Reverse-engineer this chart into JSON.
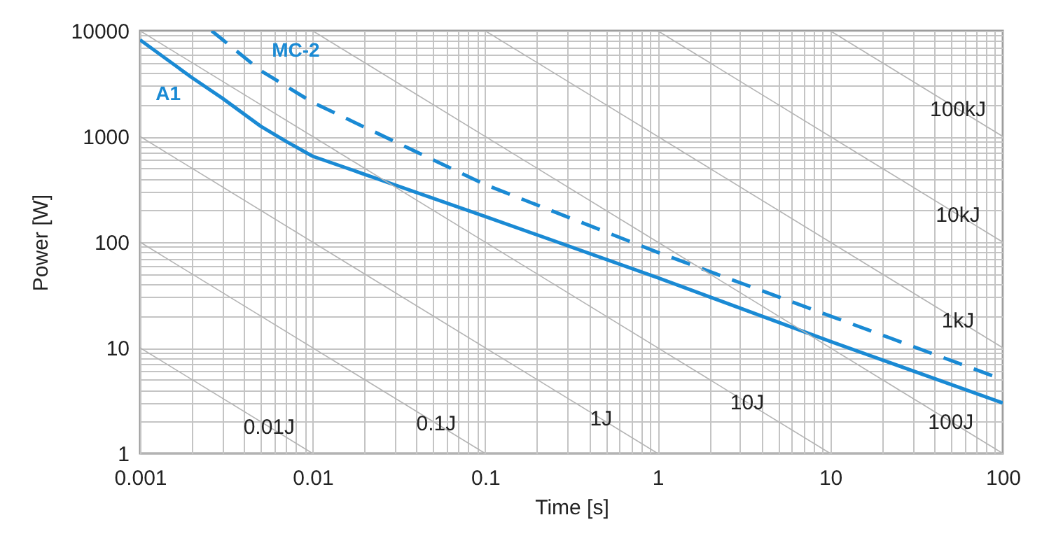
{
  "chart_data": {
    "type": "line",
    "xlabel": "Time [s]",
    "ylabel": "Power [W]",
    "log": "xy",
    "grid": true,
    "xlim": [
      0.001,
      100
    ],
    "ylim": [
      1,
      10000
    ],
    "xticks": [
      0.001,
      {
        "value": 0.002,
        "label": null
      },
      {
        "value": 0.003,
        "label": null
      },
      {
        "value": 0.004,
        "label": null
      },
      {
        "value": 0.005,
        "label": null
      },
      {
        "value": 0.006,
        "label": null
      },
      {
        "value": 0.007,
        "label": null
      },
      {
        "value": 0.008,
        "label": null
      },
      {
        "value": 0.009,
        "label": null
      },
      0.01,
      {
        "value": 0.02,
        "label": null
      },
      {
        "value": 0.03,
        "label": null
      },
      {
        "value": 0.04,
        "label": null
      },
      {
        "value": 0.05,
        "label": null
      },
      {
        "value": 0.06,
        "label": null
      },
      {
        "value": 0.07,
        "label": null
      },
      {
        "value": 0.08,
        "label": null
      },
      {
        "value": 0.09,
        "label": null
      },
      0.1,
      {
        "value": 0.2,
        "label": null
      },
      {
        "value": 0.3,
        "label": null
      },
      {
        "value": 0.4,
        "label": null
      },
      {
        "value": 0.5,
        "label": null
      },
      {
        "value": 0.6,
        "label": null
      },
      {
        "value": 0.7,
        "label": null
      },
      {
        "value": 0.8,
        "label": null
      },
      {
        "value": 0.9,
        "label": null
      },
      1,
      {
        "value": 2,
        "label": null
      },
      {
        "value": 3,
        "label": null
      },
      {
        "value": 4,
        "label": null
      },
      {
        "value": 5,
        "label": null
      },
      {
        "value": 6,
        "label": null
      },
      {
        "value": 7,
        "label": null
      },
      {
        "value": 8,
        "label": null
      },
      {
        "value": 9,
        "label": null
      },
      10,
      {
        "value": 20,
        "label": null
      },
      {
        "value": 30,
        "label": null
      },
      {
        "value": 40,
        "label": null
      },
      {
        "value": 50,
        "label": null
      },
      {
        "value": 60,
        "label": null
      },
      {
        "value": 70,
        "label": null
      },
      {
        "value": 80,
        "label": null
      },
      {
        "value": 90,
        "label": null
      },
      100
    ],
    "yticks": [
      1,
      {
        "value": 2,
        "label": null
      },
      {
        "value": 3,
        "label": null
      },
      {
        "value": 4,
        "label": null
      },
      {
        "value": 5,
        "label": null
      },
      {
        "value": 6,
        "label": null
      },
      {
        "value": 7,
        "label": null
      },
      {
        "value": 8,
        "label": null
      },
      {
        "value": 9,
        "label": null
      },
      10,
      {
        "value": 20,
        "label": null
      },
      {
        "value": 30,
        "label": null
      },
      {
        "value": 40,
        "label": null
      },
      {
        "value": 50,
        "label": null
      },
      {
        "value": 60,
        "label": null
      },
      {
        "value": 70,
        "label": null
      },
      {
        "value": 80,
        "label": null
      },
      {
        "value": 90,
        "label": null
      },
      100,
      {
        "value": 200,
        "label": null
      },
      {
        "value": 300,
        "label": null
      },
      {
        "value": 400,
        "label": null
      },
      {
        "value": 500,
        "label": null
      },
      {
        "value": 600,
        "label": null
      },
      {
        "value": 700,
        "label": null
      },
      {
        "value": 800,
        "label": null
      },
      {
        "value": 900,
        "label": null
      },
      1000,
      {
        "value": 2000,
        "label": null
      },
      {
        "value": 3000,
        "label": null
      },
      {
        "value": 4000,
        "label": null
      },
      {
        "value": 5000,
        "label": null
      },
      {
        "value": 6000,
        "label": null
      },
      {
        "value": 7000,
        "label": null
      },
      {
        "value": 8000,
        "label": null
      },
      {
        "value": 9000,
        "label": null
      },
      10000
    ],
    "series": [
      {
        "name": "A1",
        "color": "#1a8ad4",
        "line_style": "solid",
        "x": [
          0.001,
          0.002,
          0.003,
          0.005,
          0.007,
          0.01,
          0.1,
          1,
          10,
          100
        ],
        "values": [
          8200,
          3600,
          2300,
          1250,
          900,
          650,
          175,
          46,
          11.5,
          3
        ]
      },
      {
        "name": "MC-2",
        "color": "#1a8ad4",
        "line_style": "dashed",
        "x": [
          0.0026,
          0.005,
          0.01,
          0.1,
          1,
          10,
          100
        ],
        "values": [
          10000,
          4200,
          2100,
          350,
          80,
          20,
          5
        ]
      },
      {
        "color": "#b4b4b4",
        "line_style": "solid",
        "x": [
          0.001,
          0.01
        ],
        "values": [
          10,
          1
        ]
      },
      {
        "color": "#b4b4b4",
        "line_style": "solid",
        "x": [
          0.001,
          0.1
        ],
        "values": [
          100,
          1
        ]
      },
      {
        "color": "#b4b4b4",
        "line_style": "solid",
        "x": [
          0.001,
          1
        ],
        "values": [
          1000,
          1
        ]
      },
      {
        "color": "#b4b4b4",
        "line_style": "solid",
        "x": [
          0.001,
          10
        ],
        "values": [
          10000,
          1
        ]
      },
      {
        "color": "#b4b4b4",
        "line_style": "solid",
        "x": [
          0.01,
          100
        ],
        "values": [
          10000,
          1
        ]
      },
      {
        "color": "#b4b4b4",
        "line_style": "solid",
        "x": [
          0.1,
          100
        ],
        "values": [
          10000,
          10
        ]
      },
      {
        "color": "#b4b4b4",
        "line_style": "solid",
        "x": [
          1,
          100
        ],
        "values": [
          10000,
          100
        ]
      },
      {
        "color": "#b4b4b4",
        "line_style": "solid",
        "x": [
          10,
          100
        ],
        "values": [
          10000,
          1000
        ]
      }
    ],
    "annotations": [
      {
        "text": "0.01J",
        "x": 0.0056,
        "y": 1.79
      },
      {
        "text": "0.1J",
        "x": 0.052,
        "y": 1.92
      },
      {
        "text": "1J",
        "x": 0.47,
        "y": 2.13
      },
      {
        "text": "10J",
        "x": 3.3,
        "y": 3.03
      },
      {
        "text": "100J",
        "x": 50,
        "y": 2
      },
      {
        "text": "1kJ",
        "x": 55,
        "y": 18.2
      },
      {
        "text": "10kJ",
        "x": 55,
        "y": 182
      },
      {
        "text": "100kJ",
        "x": 55,
        "y": 1820
      }
    ]
  }
}
